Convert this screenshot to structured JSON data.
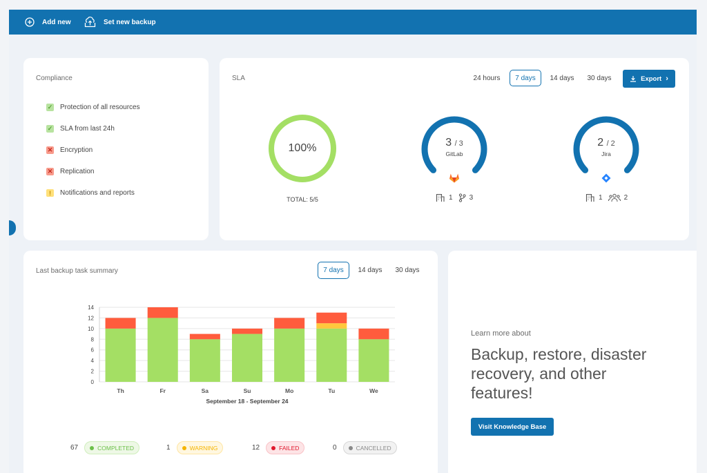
{
  "toolbar": {
    "add_new": "Add new",
    "set_new_backup": "Set new backup"
  },
  "compliance": {
    "title": "Compliance",
    "items": [
      {
        "label": "Protection of all resources",
        "status": "ok",
        "mark": "✓"
      },
      {
        "label": "SLA from last 24h",
        "status": "ok",
        "mark": "✓"
      },
      {
        "label": "Encryption",
        "status": "failed",
        "mark": "✕"
      },
      {
        "label": "Replication",
        "status": "failed",
        "mark": "✕"
      },
      {
        "label": "Notifications and reports",
        "status": "warning",
        "mark": "!"
      }
    ]
  },
  "sla": {
    "title": "SLA",
    "ranges": [
      "24 hours",
      "7 days",
      "14 days",
      "30 days"
    ],
    "active_range": "7 days",
    "export_label": "Export",
    "total": {
      "percent_label": "100%",
      "fraction": 1.0,
      "total_label": "TOTAL: 5/5"
    },
    "gitlab": {
      "count": "3",
      "of": "/ 3",
      "name": "GitLab",
      "orgs": "1",
      "repos": "3",
      "fraction": 1.0
    },
    "jira": {
      "count": "2",
      "of": "/ 2",
      "name": "Jira",
      "orgs": "1",
      "users": "2",
      "fraction": 1.0
    }
  },
  "summary": {
    "title": "Last backup task summary",
    "ranges": [
      "7 days",
      "14 days",
      "30 days"
    ],
    "active_range": "7 days",
    "stats": [
      {
        "count": "67",
        "label": "COMPLETED",
        "color": "#6cc04a"
      },
      {
        "count": "1",
        "label": "WARNING",
        "color": "#f5b400"
      },
      {
        "count": "12",
        "label": "FAILED",
        "color": "#e0182d"
      },
      {
        "count": "0",
        "label": "CANCELLED",
        "color": "#8a8a8a"
      }
    ]
  },
  "chart_data": {
    "type": "bar",
    "stacked": true,
    "categories": [
      "Th",
      "Fr",
      "Sa",
      "Su",
      "Mo",
      "Tu",
      "We"
    ],
    "series": [
      {
        "values": [
          10,
          12,
          8,
          9,
          10,
          10,
          8
        ],
        "color": "#a4df64"
      },
      {
        "values": [
          0,
          0,
          0,
          0,
          0,
          1,
          0
        ],
        "color": "#ffc83d"
      },
      {
        "values": [
          2,
          2,
          1,
          1,
          2,
          2,
          2
        ],
        "color": "#ff5c3d"
      }
    ],
    "xlabel": "September 18 - September 24",
    "ylim": [
      0,
      14
    ],
    "yticks": [
      0,
      2,
      4,
      6,
      8,
      10,
      12,
      14
    ],
    "grid": true
  },
  "learn": {
    "small": "Learn more about",
    "big": "Backup, restore, disaster recovery, and other features!",
    "button": "Visit Knowledge Base"
  }
}
